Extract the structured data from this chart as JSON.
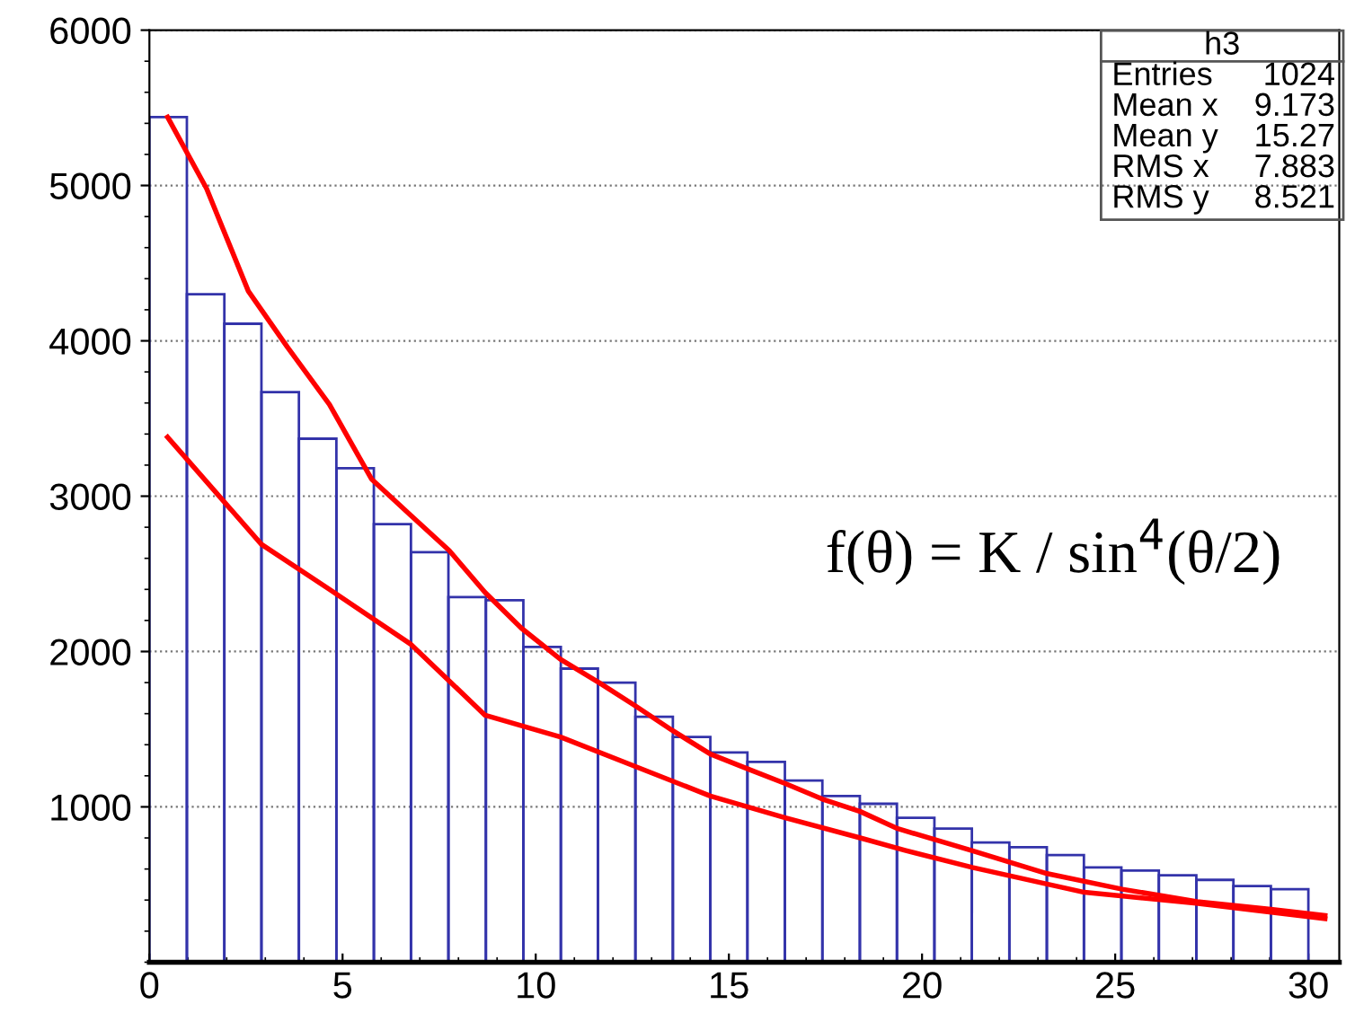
{
  "chart_data": {
    "type": "histogram",
    "bins": [
      0,
      0.97,
      1.94,
      2.9,
      3.87,
      4.84,
      5.81,
      6.77,
      7.74,
      8.71,
      9.68,
      10.65,
      11.61,
      12.58,
      13.55,
      14.52,
      15.48,
      16.45,
      17.42,
      18.39,
      19.35,
      20.32,
      21.29,
      22.26,
      23.23,
      24.19,
      25.16,
      26.13,
      27.1,
      28.06,
      29.03,
      30
    ],
    "series": [
      {
        "color": "#3333aa",
        "values": [
          5440,
          4300,
          4110,
          3670,
          3370,
          3180,
          2820,
          2640,
          2350,
          2330,
          2030,
          1890,
          1800,
          1580,
          1450,
          1350,
          1290,
          1170,
          1070,
          1020,
          930,
          860,
          770,
          740,
          690,
          610,
          590,
          560,
          530,
          490,
          470
        ]
      },
      {
        "type": "line",
        "color": "#ff0000",
        "x": [
          0.47,
          1.48,
          2.56,
          3.57,
          4.66,
          5.75,
          6.75,
          7.76,
          8.69,
          9.63,
          10.64,
          11.64,
          12.58,
          13.55,
          14.52,
          15.53,
          16.46,
          17.42,
          18.4,
          19.37,
          21.27,
          23.24,
          25.18,
          27.12,
          29.03,
          30.43
        ],
        "values": [
          5440,
          4980,
          4320,
          3960,
          3590,
          3110,
          2880,
          2650,
          2380,
          2150,
          1950,
          1800,
          1650,
          1490,
          1340,
          1240,
          1150,
          1050,
          970,
          860,
          720,
          570,
          470,
          390,
          340,
          300
        ]
      },
      {
        "type": "line",
        "color": "#ff0000",
        "x": [
          0.47,
          2.9,
          4.66,
          6.75,
          8.69,
          10.64,
          12.58,
          14.52,
          16.46,
          18.4,
          19.56,
          21.3,
          24.2,
          27.1,
          30.43
        ],
        "values": [
          3380,
          2690,
          2400,
          2050,
          1590,
          1450,
          1260,
          1070,
          930,
          800,
          720,
          610,
          450,
          380,
          280
        ]
      }
    ],
    "xlim": [
      0,
      30.8
    ],
    "xticks": [
      0,
      5,
      10,
      15,
      20,
      25,
      30
    ],
    "ylim": [
      0,
      6000
    ],
    "yticks": [
      1000,
      2000,
      3000,
      4000,
      5000,
      6000
    ],
    "grid": "y",
    "annotations": [
      "f(θ) = K / sin$^{4}$(θ/2)",
      "h3",
      "Entries 1024",
      "Mean x 9.173",
      "Mean y 15.27",
      "RMS x 7.883",
      "RMS y 8.521"
    ]
  }
}
